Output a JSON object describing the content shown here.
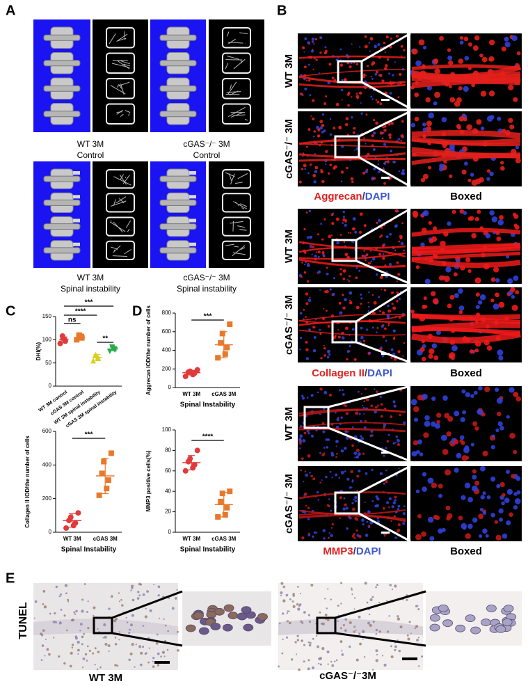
{
  "panel_labels": [
    "A",
    "B",
    "C",
    "D",
    "E"
  ],
  "panel_a": {
    "captions": [
      {
        "line1": "WT 3M",
        "line2": "Control"
      },
      {
        "line1": "cGAS⁻/⁻ 3M",
        "line2": "Control"
      },
      {
        "line1": "WT 3M",
        "line2": "Spinal instability"
      },
      {
        "line1": "cGAS⁻/⁻ 3M",
        "line2": "Spinal instability"
      }
    ]
  },
  "panel_b": {
    "groups": [
      {
        "rows": [
          "WT 3M",
          "cGAS⁻/⁻ 3M"
        ],
        "stain": [
          "Aggrecan",
          "/",
          "DAPI"
        ],
        "boxed": "Boxed"
      },
      {
        "rows": [
          "WT 3M",
          "cGAS⁻/⁻ 3M"
        ],
        "stain": [
          "Collagen II",
          "/",
          "DAPI"
        ],
        "boxed": "Boxed"
      },
      {
        "rows": [
          "WT 3M",
          "cGAS⁻/⁻ 3M"
        ],
        "stain": [
          "MMP3",
          "/",
          "DAPI"
        ],
        "boxed": "Boxed"
      }
    ]
  },
  "panel_e": {
    "row_label": "TUNEL",
    "captions": [
      "WT 3M",
      "cGAS⁻/⁻3M"
    ]
  },
  "chart_data": [
    {
      "type": "dot",
      "ylabel": "DHI(%)",
      "categories": [
        "WT 3M control",
        "cGAS 3M control",
        "WT 3M spinal instability",
        "cGAS 3M spinal instability"
      ],
      "colors": [
        "#e03a3a",
        "#e8782a",
        "#d8d020",
        "#2aa84a"
      ],
      "markers": [
        "circle",
        "square",
        "triangle",
        "down-triangle"
      ],
      "values": [
        100,
        105,
        62,
        80
      ],
      "errors": [
        6,
        4,
        6,
        4
      ],
      "points": [
        [
          92,
          97,
          100,
          103,
          108
        ],
        [
          100,
          104,
          107,
          109,
          110
        ],
        [
          55,
          60,
          62,
          66,
          68
        ],
        [
          75,
          78,
          80,
          82,
          84
        ]
      ],
      "ylim": [
        0,
        150
      ],
      "yticks": [
        0,
        50,
        100,
        150
      ],
      "annotations": [
        "***",
        "****",
        "ns",
        "**"
      ]
    },
    {
      "type": "dot",
      "ylabel": "Aggrecan IOD/the number of cells",
      "xlabel": "Spinal Instability",
      "categories": [
        "WT 3M",
        "cGAS 3M"
      ],
      "colors": [
        "#e03a3a",
        "#e8782a"
      ],
      "markers": [
        "circle",
        "square"
      ],
      "values": [
        160,
        460
      ],
      "errors": [
        25,
        140
      ],
      "points": [
        [
          120,
          140,
          155,
          165,
          175,
          190
        ],
        [
          320,
          360,
          430,
          480,
          580,
          680
        ]
      ],
      "ylim": [
        0,
        800
      ],
      "yticks": [
        0,
        200,
        400,
        600,
        800
      ],
      "annotations": [
        "***"
      ]
    },
    {
      "type": "dot",
      "ylabel": "Collagen II IOD/the number of cells",
      "xlabel": "Spinal Instability",
      "categories": [
        "WT 3M",
        "cGAS 3M"
      ],
      "colors": [
        "#e03a3a",
        "#e8782a"
      ],
      "markers": [
        "circle",
        "square"
      ],
      "values": [
        70,
        335
      ],
      "errors": [
        40,
        105
      ],
      "points": [
        [
          25,
          40,
          55,
          70,
          90,
          115
        ],
        [
          220,
          260,
          310,
          350,
          420,
          470
        ]
      ],
      "ylim": [
        0,
        600
      ],
      "yticks": [
        0,
        200,
        400,
        600
      ],
      "annotations": [
        "***"
      ]
    },
    {
      "type": "dot",
      "ylabel": "MMP3 positive cells(%)",
      "xlabel": "Spinal Instability",
      "categories": [
        "WT 3M",
        "cGAS 3M"
      ],
      "colors": [
        "#e03a3a",
        "#e8782a"
      ],
      "markers": [
        "circle",
        "square"
      ],
      "values": [
        68,
        27
      ],
      "errors": [
        7,
        12
      ],
      "points": [
        [
          60,
          63,
          66,
          69,
          72,
          80
        ],
        [
          15,
          17,
          24,
          30,
          38,
          40
        ]
      ],
      "ylim": [
        0,
        100
      ],
      "yticks": [
        0,
        20,
        40,
        60,
        80,
        100
      ],
      "annotations": [
        "****"
      ]
    }
  ]
}
